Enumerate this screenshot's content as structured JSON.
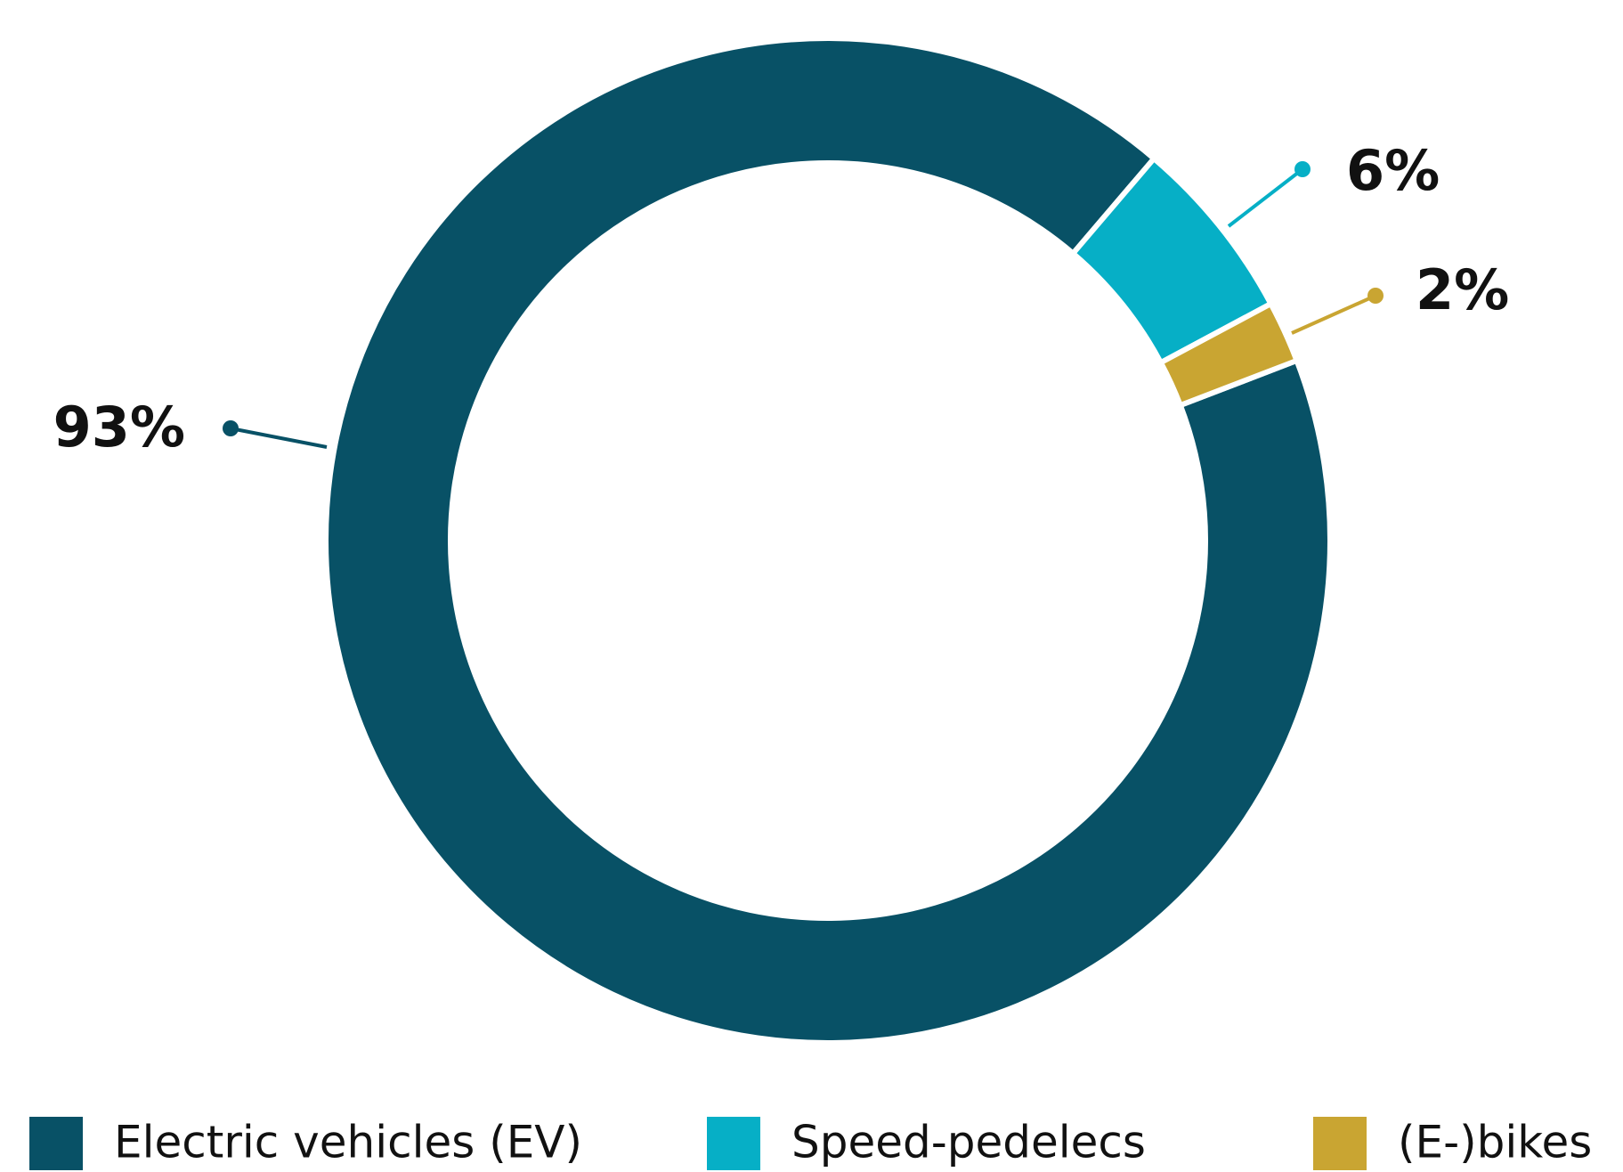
{
  "chart_data": {
    "type": "donut",
    "categories": [
      "Electric vehicles (EV)",
      "Speed-pedelecs",
      "(E-)bikes"
    ],
    "values": [
      93,
      6,
      2
    ],
    "value_labels": [
      "93%",
      "6%",
      "2%"
    ],
    "colors": [
      "#085166",
      "#06afc6",
      "#c9a532"
    ],
    "legend": "bottom"
  }
}
